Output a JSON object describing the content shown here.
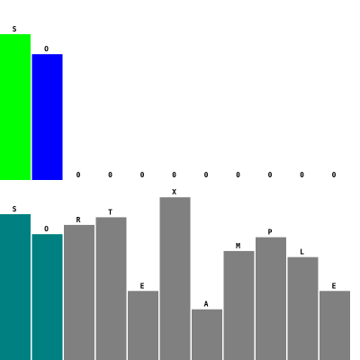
{
  "colors": {
    "background": "#ffffff",
    "top_bar_0": "#00ff00",
    "top_bar_1": "#0000ff",
    "sorted_bar": "#008080",
    "unsorted_bar": "#808080"
  },
  "top_row": {
    "max_value": 100,
    "bars": [
      {
        "label": "S",
        "value": 95,
        "state": "active-a"
      },
      {
        "label": "O",
        "value": 82,
        "state": "active-b"
      },
      {
        "label": "0",
        "value": 0,
        "state": "empty"
      },
      {
        "label": "0",
        "value": 0,
        "state": "empty"
      },
      {
        "label": "0",
        "value": 0,
        "state": "empty"
      },
      {
        "label": "0",
        "value": 0,
        "state": "empty"
      },
      {
        "label": "0",
        "value": 0,
        "state": "empty"
      },
      {
        "label": "0",
        "value": 0,
        "state": "empty"
      },
      {
        "label": "0",
        "value": 0,
        "state": "empty"
      },
      {
        "label": "0",
        "value": 0,
        "state": "empty"
      },
      {
        "label": "0",
        "value": 0,
        "state": "empty"
      }
    ]
  },
  "bottom_row": {
    "max_value": 100,
    "bars": [
      {
        "label": "S",
        "value": 95,
        "state": "sorted"
      },
      {
        "label": "O",
        "value": 82,
        "state": "sorted"
      },
      {
        "label": "R",
        "value": 88,
        "state": "unsorted"
      },
      {
        "label": "T",
        "value": 93,
        "state": "unsorted"
      },
      {
        "label": "E",
        "value": 45,
        "state": "unsorted"
      },
      {
        "label": "X",
        "value": 106,
        "state": "unsorted"
      },
      {
        "label": "A",
        "value": 33,
        "state": "unsorted"
      },
      {
        "label": "M",
        "value": 71,
        "state": "unsorted"
      },
      {
        "label": "P",
        "value": 80,
        "state": "unsorted"
      },
      {
        "label": "L",
        "value": 67,
        "state": "unsorted"
      },
      {
        "label": "E",
        "value": 45,
        "state": "unsorted"
      }
    ]
  }
}
